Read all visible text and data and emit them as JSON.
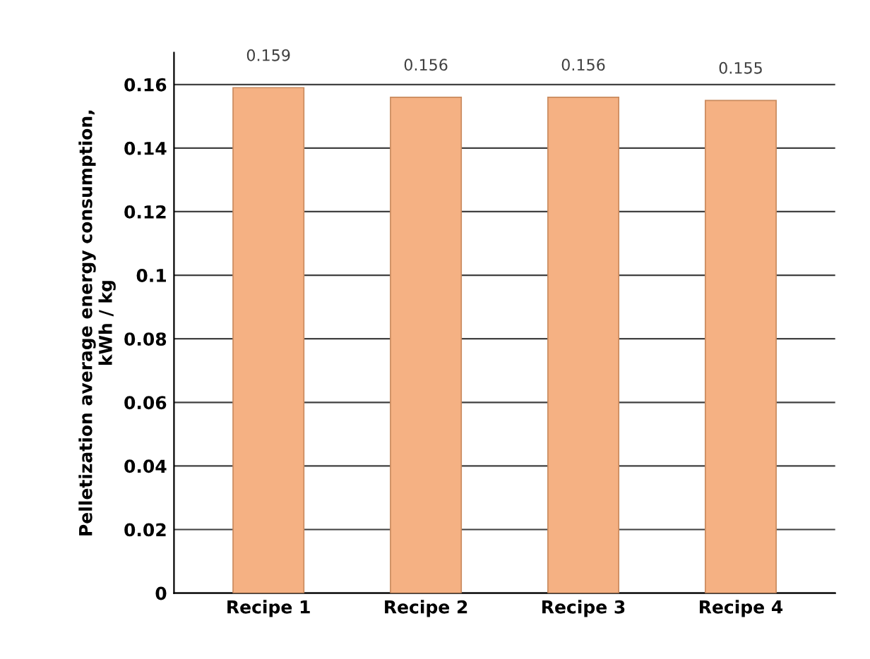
{
  "chart_data": {
    "type": "bar",
    "ylabel": "Pelletization average energy consumption,\nkWh / kg",
    "categories": [
      "Recipe 1",
      "Recipe 2",
      "Recipe 3",
      "Recipe 4"
    ],
    "values": [
      0.159,
      0.156,
      0.156,
      0.155
    ],
    "color": "#f5b183",
    "data_labels": true,
    "ylim": [
      0,
      0.17
    ],
    "yticks": [
      0,
      0.02,
      0.04,
      0.06,
      0.08,
      0.1,
      0.12,
      0.14,
      0.16
    ],
    "grid": "y"
  }
}
